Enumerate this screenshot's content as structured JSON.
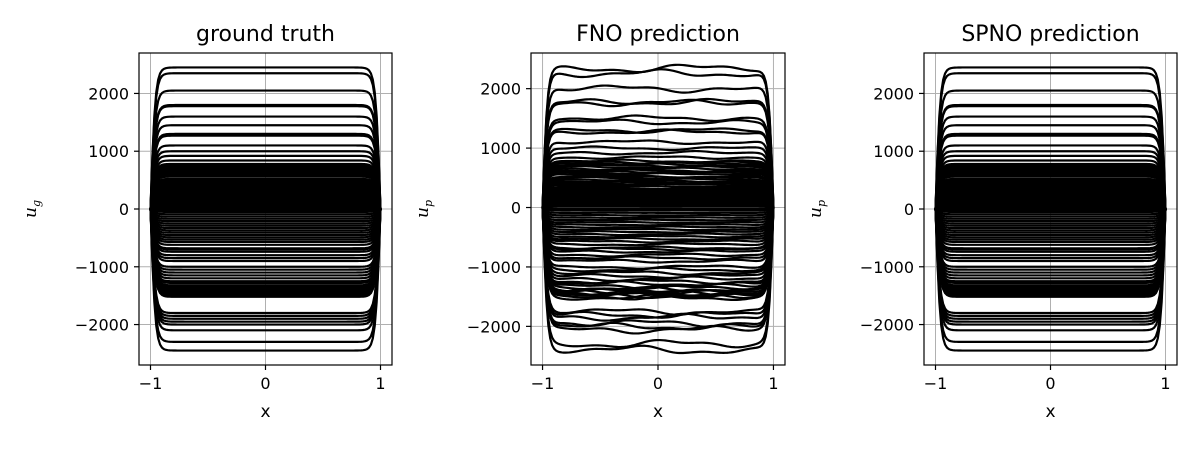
{
  "chart_data": [
    {
      "type": "line",
      "title": "ground truth",
      "xlabel": "x",
      "ylabel": "u",
      "ylabel_sub": "g",
      "xlim": [
        -1.1,
        1.1
      ],
      "ylim": [
        -2700,
        2700
      ],
      "xticks": [
        -1,
        0,
        1
      ],
      "xtick_labels": [
        "−1",
        "0",
        "1"
      ],
      "yticks": [
        -2000,
        -1000,
        0,
        1000,
        2000
      ],
      "ytick_labels": [
        "−2000",
        "−1000",
        "0",
        "1000",
        "2000"
      ],
      "grid": true,
      "line_color": "#000000",
      "noisy": false,
      "series_amplitudes": [
        2450,
        2350,
        2050,
        1800,
        1780,
        1600,
        1450,
        1300,
        1270,
        1100,
        1000,
        920,
        840,
        780,
        760,
        740,
        720,
        700,
        680,
        650,
        620,
        600,
        580,
        560,
        520,
        500,
        470,
        440,
        420,
        400,
        380,
        350,
        320,
        300,
        280,
        260,
        240,
        220,
        200,
        180,
        160,
        140,
        120,
        100,
        80,
        60,
        40,
        20,
        -20,
        -50,
        -90,
        -130,
        -170,
        -210,
        -250,
        -290,
        -330,
        -370,
        -410,
        -450,
        -490,
        -530,
        -570,
        -620,
        -680,
        -700,
        -740,
        -800,
        -850,
        -900,
        -1000,
        -1050,
        -1100,
        -1150,
        -1200,
        -1250,
        -1280,
        -1320,
        -1350,
        -1380,
        -1400,
        -1420,
        -1440,
        -1460,
        -1480,
        -1500,
        -1520,
        -1800,
        -1850,
        -1900,
        -1950,
        -2000,
        -2100,
        -2300,
        -2450
      ]
    },
    {
      "type": "line",
      "title": "FNO prediction",
      "xlabel": "x",
      "ylabel": "u",
      "ylabel_sub": "p",
      "xlim": [
        -1.1,
        1.1
      ],
      "ylim": [
        -2650,
        2600
      ],
      "xticks": [
        -1,
        0,
        1
      ],
      "xtick_labels": [
        "−1",
        "0",
        "1"
      ],
      "yticks": [
        -2000,
        -1000,
        0,
        1000,
        2000
      ],
      "ytick_labels": [
        "−2000",
        "−1000",
        "0",
        "1000",
        "2000"
      ],
      "grid": true,
      "line_color": "#000000",
      "noisy": true,
      "series_amplitudes": [
        2340,
        2250,
        2000,
        1780,
        1760,
        1500,
        1440,
        1300,
        1270,
        1100,
        1000,
        920,
        840,
        780,
        760,
        740,
        720,
        700,
        680,
        650,
        620,
        600,
        580,
        560,
        520,
        500,
        470,
        440,
        420,
        400,
        380,
        350,
        320,
        300,
        280,
        260,
        240,
        220,
        200,
        180,
        160,
        140,
        120,
        100,
        80,
        60,
        40,
        20,
        -20,
        -50,
        -90,
        -130,
        -170,
        -210,
        -250,
        -290,
        -330,
        -370,
        -410,
        -450,
        -490,
        -530,
        -570,
        -620,
        -680,
        -700,
        -740,
        -800,
        -850,
        -900,
        -1000,
        -1050,
        -1100,
        -1150,
        -1200,
        -1250,
        -1280,
        -1320,
        -1350,
        -1380,
        -1400,
        -1420,
        -1440,
        -1460,
        -1480,
        -1500,
        -1520,
        -1750,
        -1800,
        -1850,
        -1950,
        -2000,
        -2050,
        -2300,
        -2400
      ]
    },
    {
      "type": "line",
      "title": "SPNO prediction",
      "xlabel": "x",
      "ylabel": "u",
      "ylabel_sub": "p",
      "xlim": [
        -1.1,
        1.1
      ],
      "ylim": [
        -2700,
        2700
      ],
      "xticks": [
        -1,
        0,
        1
      ],
      "xtick_labels": [
        "−1",
        "0",
        "1"
      ],
      "yticks": [
        -2000,
        -1000,
        0,
        1000,
        2000
      ],
      "ytick_labels": [
        "−2000",
        "−1000",
        "0",
        "1000",
        "2000"
      ],
      "grid": true,
      "line_color": "#000000",
      "noisy": false,
      "series_amplitudes": [
        2450,
        2350,
        2050,
        1800,
        1780,
        1600,
        1450,
        1300,
        1270,
        1100,
        1000,
        920,
        840,
        780,
        760,
        740,
        720,
        700,
        680,
        650,
        620,
        600,
        580,
        560,
        520,
        500,
        470,
        440,
        420,
        400,
        380,
        350,
        320,
        300,
        280,
        260,
        240,
        220,
        200,
        180,
        160,
        140,
        120,
        100,
        80,
        60,
        40,
        20,
        -20,
        -50,
        -90,
        -130,
        -170,
        -210,
        -250,
        -290,
        -330,
        -370,
        -410,
        -450,
        -490,
        -530,
        -570,
        -620,
        -680,
        -700,
        -740,
        -800,
        -850,
        -900,
        -1000,
        -1050,
        -1100,
        -1150,
        -1200,
        -1250,
        -1280,
        -1320,
        -1350,
        -1380,
        -1400,
        -1420,
        -1440,
        -1460,
        -1480,
        -1500,
        -1520,
        -1800,
        -1850,
        -1900,
        -1950,
        -2000,
        -2100,
        -2300,
        -2450
      ]
    }
  ]
}
